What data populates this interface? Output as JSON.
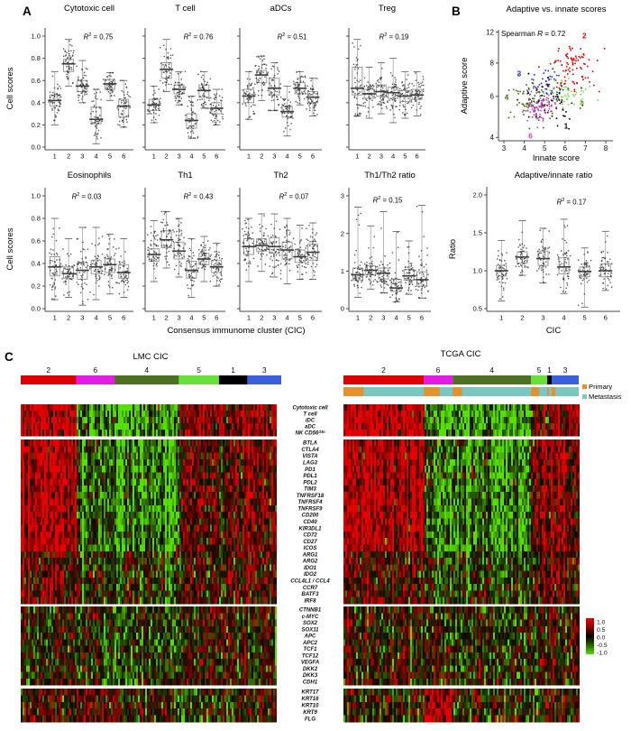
{
  "panel_labels": {
    "a": "A",
    "b": "B",
    "c": "C"
  },
  "labels": {
    "cell_scores": "Cell scores",
    "cic_long": "Consensus immunome cluster (CIC)",
    "cic_short": "CIC",
    "innate": "Innate score",
    "adaptive": "Adaptive score",
    "ratio": "Ratio",
    "spearman_pre": "Spearman ",
    "spearman_r": "R",
    "spearman_rest": " = 0.72"
  },
  "chart_data": [
    {
      "id": "p1",
      "type": "box",
      "title": "Cytotoxic cell",
      "r_label": "R",
      "r_sup": "2",
      "r_rest": " = 0.75",
      "categories": [
        "1",
        "2",
        "3",
        "4",
        "5",
        "6"
      ],
      "ylabel": "Cell scores",
      "ylim": [
        0,
        1
      ],
      "show_ylabels": true,
      "yticks": [
        {
          "v": 0,
          "label": "0.0"
        },
        {
          "v": 0.2,
          "label": "0.2"
        },
        {
          "v": 0.4,
          "label": "0.4"
        },
        {
          "v": 0.6,
          "label": "0.6"
        },
        {
          "v": 0.8,
          "label": "0.8"
        },
        {
          "v": 1,
          "label": "1.0"
        }
      ],
      "boxes": [
        [
          0.37,
          0.42,
          0.47,
          0.2,
          0.68
        ],
        [
          0.68,
          0.75,
          0.79,
          0.55,
          0.97
        ],
        [
          0.5,
          0.55,
          0.6,
          0.4,
          0.78
        ],
        [
          0.21,
          0.25,
          0.36,
          0.03,
          0.52
        ],
        [
          0.52,
          0.57,
          0.61,
          0.42,
          0.67
        ],
        [
          0.27,
          0.37,
          0.43,
          0.18,
          0.6
        ]
      ]
    },
    {
      "id": "p2",
      "type": "box",
      "title": "T cell",
      "r_label": "R",
      "r_sup": "2",
      "r_rest": " = 0.76",
      "categories": [
        "1",
        "2",
        "3",
        "4",
        "5",
        "6"
      ],
      "ylim": [
        0,
        1
      ],
      "show_ylabels": false,
      "yticks": [
        {
          "v": 0,
          "label": "0.0"
        },
        {
          "v": 0.2,
          "label": "0.2"
        },
        {
          "v": 0.4,
          "label": "0.4"
        },
        {
          "v": 0.6,
          "label": "0.6"
        },
        {
          "v": 0.8,
          "label": "0.8"
        },
        {
          "v": 1,
          "label": "1.0"
        }
      ],
      "boxes": [
        [
          0.33,
          0.38,
          0.43,
          0.22,
          0.55
        ],
        [
          0.62,
          0.7,
          0.76,
          0.5,
          0.97
        ],
        [
          0.48,
          0.52,
          0.56,
          0.38,
          0.68
        ],
        [
          0.17,
          0.24,
          0.3,
          0.08,
          0.46
        ],
        [
          0.45,
          0.51,
          0.56,
          0.35,
          0.68
        ],
        [
          0.3,
          0.35,
          0.4,
          0.2,
          0.52
        ]
      ]
    },
    {
      "id": "p3",
      "type": "box",
      "title": "aDCs",
      "r_label": "R",
      "r_sup": "2",
      "r_rest": " = 0.51",
      "categories": [
        "1",
        "2",
        "3",
        "4",
        "5",
        "6"
      ],
      "ylim": [
        0,
        1
      ],
      "show_ylabels": false,
      "yticks": [
        {
          "v": 0,
          "label": "0.0"
        },
        {
          "v": 0.2,
          "label": "0.2"
        },
        {
          "v": 0.4,
          "label": "0.4"
        },
        {
          "v": 0.6,
          "label": "0.6"
        },
        {
          "v": 0.8,
          "label": "0.8"
        },
        {
          "v": 1,
          "label": "1.0"
        }
      ],
      "boxes": [
        [
          0.4,
          0.46,
          0.52,
          0.25,
          0.68
        ],
        [
          0.58,
          0.65,
          0.69,
          0.42,
          0.82
        ],
        [
          0.47,
          0.53,
          0.62,
          0.33,
          0.76
        ],
        [
          0.27,
          0.32,
          0.37,
          0.1,
          0.55
        ],
        [
          0.48,
          0.53,
          0.58,
          0.38,
          0.68
        ],
        [
          0.4,
          0.45,
          0.5,
          0.28,
          0.62
        ]
      ]
    },
    {
      "id": "p4",
      "type": "box",
      "title": "Treg",
      "r_label": "R",
      "r_sup": "2",
      "r_rest": " = 0.19",
      "categories": [
        "1",
        "2",
        "3",
        "4",
        "5",
        "6"
      ],
      "ylim": [
        0,
        1
      ],
      "show_ylabels": false,
      "yticks": [
        {
          "v": 0,
          "label": "0.0"
        },
        {
          "v": 0.2,
          "label": "0.2"
        },
        {
          "v": 0.4,
          "label": "0.4"
        },
        {
          "v": 0.6,
          "label": "0.6"
        },
        {
          "v": 0.8,
          "label": "0.8"
        },
        {
          "v": 1,
          "label": "1.0"
        }
      ],
      "boxes": [
        [
          0.47,
          0.53,
          0.72,
          0.28,
          0.97
        ],
        [
          0.44,
          0.48,
          0.52,
          0.26,
          0.72
        ],
        [
          0.46,
          0.5,
          0.56,
          0.3,
          0.76
        ],
        [
          0.44,
          0.49,
          0.54,
          0.22,
          0.8
        ],
        [
          0.41,
          0.46,
          0.51,
          0.26,
          0.68
        ],
        [
          0.43,
          0.47,
          0.52,
          0.28,
          0.68
        ]
      ]
    },
    {
      "id": "p5",
      "type": "box",
      "title": "Eosinophils",
      "r_label": "R",
      "r_sup": "2",
      "r_rest": " = 0.03",
      "categories": [
        "1",
        "2",
        "3",
        "4",
        "5",
        "6"
      ],
      "ylabel": "Cell scores",
      "ylim": [
        0,
        1
      ],
      "show_ylabels": true,
      "yticks": [
        {
          "v": 0,
          "label": "0.0"
        },
        {
          "v": 0.2,
          "label": "0.2"
        },
        {
          "v": 0.4,
          "label": "0.4"
        },
        {
          "v": 0.6,
          "label": "0.6"
        },
        {
          "v": 0.8,
          "label": "0.8"
        },
        {
          "v": 1,
          "label": "1.0"
        }
      ],
      "boxes": [
        [
          0.29,
          0.37,
          0.46,
          0.08,
          0.8
        ],
        [
          0.27,
          0.31,
          0.37,
          0.1,
          0.62
        ],
        [
          0.26,
          0.34,
          0.41,
          0.03,
          0.72
        ],
        [
          0.31,
          0.37,
          0.43,
          0.08,
          0.72
        ],
        [
          0.32,
          0.39,
          0.44,
          0.13,
          0.66
        ],
        [
          0.27,
          0.32,
          0.39,
          0.1,
          0.62
        ]
      ]
    },
    {
      "id": "p6",
      "type": "box",
      "title": "Th1",
      "r_label": "R",
      "r_sup": "2",
      "r_rest": " = 0.43",
      "categories": [
        "1",
        "2",
        "3",
        "4",
        "5",
        "6"
      ],
      "ylim": [
        0,
        1
      ],
      "show_ylabels": false,
      "yticks": [
        {
          "v": 0,
          "label": "0.0"
        },
        {
          "v": 0.2,
          "label": "0.2"
        },
        {
          "v": 0.4,
          "label": "0.4"
        },
        {
          "v": 0.6,
          "label": "0.6"
        },
        {
          "v": 0.8,
          "label": "0.8"
        },
        {
          "v": 1,
          "label": "1.0"
        }
      ],
      "boxes": [
        [
          0.42,
          0.48,
          0.53,
          0.24,
          0.78
        ],
        [
          0.54,
          0.61,
          0.69,
          0.36,
          0.86
        ],
        [
          0.44,
          0.51,
          0.59,
          0.28,
          0.8
        ],
        [
          0.27,
          0.34,
          0.42,
          0.1,
          0.62
        ],
        [
          0.39,
          0.44,
          0.49,
          0.24,
          0.64
        ],
        [
          0.32,
          0.37,
          0.43,
          0.2,
          0.58
        ]
      ]
    },
    {
      "id": "p7",
      "type": "box",
      "title": "Th2",
      "r_label": "R",
      "r_sup": "2",
      "r_rest": " = 0.07",
      "categories": [
        "1",
        "2",
        "3",
        "4",
        "5",
        "6"
      ],
      "ylim": [
        0,
        1
      ],
      "show_ylabels": false,
      "yticks": [
        {
          "v": 0,
          "label": "0.0"
        },
        {
          "v": 0.2,
          "label": "0.2"
        },
        {
          "v": 0.4,
          "label": "0.4"
        },
        {
          "v": 0.6,
          "label": "0.6"
        },
        {
          "v": 0.8,
          "label": "0.8"
        },
        {
          "v": 1,
          "label": "1.0"
        }
      ],
      "boxes": [
        [
          0.48,
          0.55,
          0.62,
          0.24,
          0.8
        ],
        [
          0.51,
          0.56,
          0.62,
          0.33,
          0.84
        ],
        [
          0.49,
          0.55,
          0.63,
          0.28,
          0.84
        ],
        [
          0.44,
          0.52,
          0.59,
          0.22,
          0.8
        ],
        [
          0.41,
          0.46,
          0.52,
          0.26,
          0.74
        ],
        [
          0.43,
          0.5,
          0.57,
          0.26,
          0.76
        ]
      ]
    },
    {
      "id": "p8",
      "type": "box",
      "title": "Th1/Th2 ratio",
      "r_label": "R",
      "r_sup": "2",
      "r_rest": " = 0.15",
      "categories": [
        "1",
        "2",
        "3",
        "4",
        "5",
        "6"
      ],
      "ylim": [
        0,
        3
      ],
      "show_ylabels": true,
      "yticks": [
        {
          "v": 0,
          "label": "0"
        },
        {
          "v": 1,
          "label": "1"
        },
        {
          "v": 2,
          "label": "2"
        },
        {
          "v": 3,
          "label": "3"
        }
      ],
      "boxes": [
        [
          0.76,
          0.9,
          1.08,
          0.3,
          2.7
        ],
        [
          0.9,
          1.02,
          1.14,
          0.52,
          2.2
        ],
        [
          0.79,
          0.94,
          1.08,
          0.42,
          2.58
        ],
        [
          0.46,
          0.55,
          0.78,
          0.18,
          2.05
        ],
        [
          0.76,
          0.87,
          1.04,
          0.38,
          1.8
        ],
        [
          0.6,
          0.77,
          0.98,
          0.28,
          2.75
        ]
      ]
    },
    {
      "id": "scatter",
      "type": "scatter",
      "title": "Adaptive vs. innate scores",
      "xlabel": "Innate score",
      "ylabel": "Adaptive score",
      "xlim": [
        3,
        8
      ],
      "xticks": [
        "3",
        "4",
        "5",
        "6",
        "7",
        "8"
      ],
      "yticks": [
        {
          "v": 12,
          "label": "12"
        },
        {
          "v": 8,
          "label": "8"
        },
        {
          "v": 6,
          "label": "6"
        },
        {
          "v": 4,
          "label": "4"
        }
      ],
      "y_anchors": [
        [
          4,
          0.97
        ],
        [
          6,
          0.6
        ],
        [
          8,
          0.3
        ],
        [
          12,
          0.02
        ]
      ],
      "clusters": [
        {
          "label": "2",
          "color": "#d40000",
          "n": 95,
          "mx": 6.3,
          "my": 7.9,
          "sx": 0.55,
          "sy": 0.9,
          "lx": 0.75,
          "ly": 0.03
        },
        {
          "label": "3",
          "color": "#2331cd",
          "n": 45,
          "mx": 5.05,
          "my": 6.85,
          "sx": 0.45,
          "sy": 0.45,
          "lx": 0.18,
          "ly": 0.37
        },
        {
          "label": "4",
          "color": "#47661a",
          "n": 95,
          "mx": 4.4,
          "my": 5.65,
          "sx": 0.55,
          "sy": 0.45,
          "lx": 0.01,
          "ly": 0.58
        },
        {
          "label": "5",
          "color": "#72d84e",
          "n": 50,
          "mx": 5.95,
          "my": 6.2,
          "sx": 0.6,
          "sy": 0.4,
          "lx": 0.73,
          "ly": 0.62
        },
        {
          "label": "1",
          "color": "#000000",
          "n": 50,
          "mx": 5.4,
          "my": 5.85,
          "sx": 0.7,
          "sy": 0.7,
          "lx": 0.59,
          "ly": 0.84
        },
        {
          "label": "6",
          "color": "#cb3bcb",
          "n": 70,
          "mx": 4.75,
          "my": 5.5,
          "sx": 0.42,
          "sy": 0.38,
          "lx": 0.28,
          "ly": 0.93
        }
      ]
    },
    {
      "id": "ratio",
      "type": "box",
      "title": "Adaptive/innate ratio",
      "r_label": "R",
      "r_sup": "2",
      "r_rest": " = 0.17",
      "categories": [
        "1",
        "2",
        "3",
        "4",
        "5",
        "6"
      ],
      "xlabel": "CIC",
      "ylabel": "Ratio",
      "ylim": [
        0.5,
        2.0
      ],
      "show_ylabels": true,
      "yticks": [
        {
          "v": 0.5,
          "label": "0.5"
        },
        {
          "v": 1.0,
          "label": "1.0"
        },
        {
          "v": 1.5,
          "label": "1.5"
        },
        {
          "v": 2.0,
          "label": "2.0"
        }
      ],
      "boxes": [
        [
          0.93,
          1.0,
          1.07,
          0.6,
          1.4
        ],
        [
          1.1,
          1.18,
          1.25,
          0.94,
          1.66
        ],
        [
          1.07,
          1.16,
          1.26,
          0.84,
          1.56
        ],
        [
          0.96,
          1.05,
          1.17,
          0.7,
          1.68
        ],
        [
          0.92,
          0.99,
          1.05,
          0.52,
          1.3
        ],
        [
          0.92,
          1.0,
          1.09,
          0.74,
          1.52
        ]
      ]
    }
  ],
  "heatmap": {
    "lmc": {
      "title": "LMC CIC",
      "clusters": [
        {
          "label": "2",
          "color": "#dc0000",
          "frac": 0.213
        },
        {
          "label": "6",
          "color": "#e21ce2",
          "frac": 0.147
        },
        {
          "label": "4",
          "color": "#4e7022",
          "frac": 0.247
        },
        {
          "label": "5",
          "color": "#67e03a",
          "frac": 0.154
        },
        {
          "label": "1",
          "color": "#000000",
          "frac": 0.109
        },
        {
          "label": "3",
          "color": "#3c5fde",
          "frac": 0.13
        }
      ],
      "bias": {
        "a": [
          0.85,
          -0.55,
          -0.78,
          0.42,
          0.3,
          0.5
        ],
        "b": [
          0.8,
          -0.45,
          -0.68,
          0.3,
          0.22,
          0.32
        ],
        "c": [
          -0.08,
          -0.15,
          -0.22,
          -0.02,
          -0.08,
          0.02
        ],
        "d": [
          0.05,
          0.3,
          -0.12,
          -0.18,
          0.02,
          0.1
        ]
      }
    },
    "tcga": {
      "title": "TCGA CIC",
      "clusters": [
        {
          "label": "2",
          "color": "#dc0000",
          "frac": 0.341
        },
        {
          "label": "6",
          "color": "#e21ce2",
          "frac": 0.123
        },
        {
          "label": "4",
          "color": "#4e7022",
          "frac": 0.333
        },
        {
          "label": "5",
          "color": "#67e03a",
          "frac": 0.069
        },
        {
          "label": "1",
          "color": "#000000",
          "frac": 0.019
        },
        {
          "label": "3",
          "color": "#3c5fde",
          "frac": 0.115
        }
      ],
      "sample_bar": {
        "primary_fracs": [
          0.25,
          0.55,
          0.12,
          0.5,
          0.4,
          0.14
        ]
      },
      "bias": {
        "a": [
          0.85,
          -0.6,
          -0.72,
          0.4,
          0.28,
          0.45
        ],
        "b": [
          0.75,
          -0.5,
          -0.62,
          0.28,
          0.18,
          0.35
        ],
        "c": [
          -0.05,
          -0.1,
          -0.18,
          -0.02,
          -0.05,
          0.0
        ],
        "d": [
          0.0,
          0.72,
          -0.12,
          -0.1,
          0.0,
          0.08
        ]
      }
    },
    "genes": {
      "a": [
        "Cytotoxic cell",
        "T cell",
        "iDC",
        "aDC",
        "NK CD56ᵈⁱᵐ"
      ],
      "b": [
        "BTLA",
        "CTLA4",
        "VISTA",
        "LAG3",
        "PD1",
        "PDL1",
        "PDL2",
        "TIM3",
        "TNFRSF18",
        "TNFRSF4",
        "TNFRSF9",
        "CD200",
        "CD40",
        "KIR3DL1",
        "CD72",
        "CD27",
        "ICOS",
        "ARG1",
        "ARG2",
        "IDO1",
        "IDO2",
        "CCL4L1 / CCL4",
        "CCR7",
        "BATF3",
        "IRF8"
      ],
      "c": [
        "CTNNB1",
        "c-MYC",
        "SOX2",
        "SOX11",
        "APC",
        "APC2",
        "TCF1",
        "TCF12",
        "VEGFA",
        "DKK2",
        "DKK3",
        "CDH1"
      ],
      "d": [
        "KRT17",
        "KRT16",
        "KRT10",
        "KRT9",
        "FLG"
      ]
    },
    "group_labels": [
      "a",
      "b",
      "c",
      "d"
    ],
    "legend": {
      "primary": {
        "label": "Primary",
        "color": "#e2932f"
      },
      "metastasis": {
        "label": "Metastasis",
        "color": "#79c6c3"
      }
    },
    "scale": {
      "values": [
        "1.0",
        "0.5",
        "0.0",
        "-0.5",
        "-1.0"
      ],
      "colors": [
        "#e80000",
        "#8b0000",
        "#000000",
        "#2d5f00",
        "#55e000"
      ]
    }
  }
}
